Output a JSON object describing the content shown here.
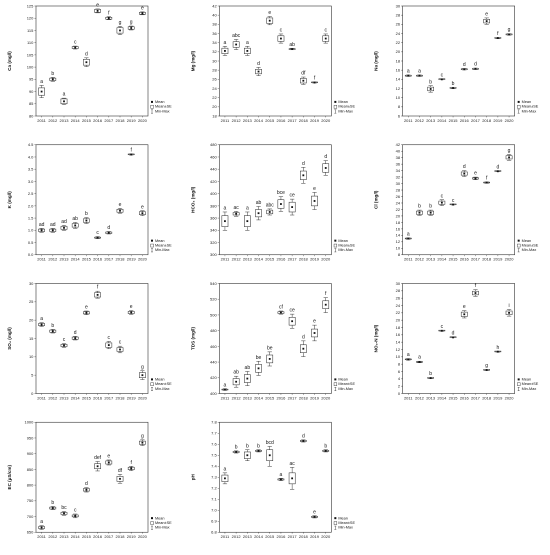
{
  "chart_data": [
    {
      "type": "box",
      "ylabel": "Ca (mg/l)",
      "x": [
        "2011",
        "2012",
        "2013",
        "2014",
        "2015",
        "2016",
        "2017",
        "2018",
        "2019",
        "2020"
      ],
      "ylim": [
        80,
        125
      ],
      "yticks": [
        "80",
        "85",
        "90",
        "95",
        "100",
        "105",
        "110",
        "115",
        "120",
        "125"
      ],
      "mean": [
        90,
        95,
        86,
        108,
        102,
        123,
        120,
        115,
        116,
        122
      ],
      "se_low": [
        88.5,
        94.5,
        85,
        107.6,
        100.8,
        122.4,
        119.6,
        113.9,
        115.5,
        121.6
      ],
      "se_high": [
        91.5,
        95.5,
        87,
        108.4,
        103.2,
        123.6,
        120.4,
        116.1,
        116.5,
        122.4
      ],
      "min": [
        87.5,
        94.2,
        84.7,
        107.4,
        100.2,
        122.2,
        119.4,
        113.3,
        115.2,
        121.4
      ],
      "max": [
        92.5,
        95.8,
        87.3,
        108.6,
        103.8,
        123.8,
        120.6,
        116.7,
        116.8,
        122.6
      ],
      "groups": [
        "a",
        "b",
        "a",
        "c",
        "d",
        "e",
        "f",
        "g",
        "g",
        "e"
      ]
    },
    {
      "type": "box",
      "ylabel": "Mg (mg/l)",
      "x": [
        "2011",
        "2012",
        "2013",
        "2014",
        "2015",
        "2016",
        "2017",
        "2018",
        "2019",
        "2020"
      ],
      "ylim": [
        18,
        42
      ],
      "yticks": [
        "18",
        "20",
        "22",
        "24",
        "26",
        "28",
        "30",
        "32",
        "34",
        "36",
        "38",
        "40",
        "42"
      ],
      "mean": [
        32.2,
        33.6,
        32.2,
        27.7,
        38.8,
        34.9,
        32.6,
        25.7,
        25.3,
        34.9
      ],
      "se_low": [
        31.6,
        33.0,
        31.6,
        27.2,
        38.2,
        34.3,
        32.5,
        25.2,
        25.25,
        34.3
      ],
      "se_high": [
        32.8,
        34.2,
        32.8,
        28.2,
        39.4,
        35.5,
        32.7,
        26.2,
        25.35,
        35.5
      ],
      "min": [
        31.2,
        32.5,
        31.2,
        26.8,
        37.9,
        33.9,
        32.45,
        24.9,
        25.2,
        33.9
      ],
      "max": [
        33.2,
        34.7,
        33.2,
        28.6,
        39.7,
        35.9,
        32.75,
        26.5,
        25.4,
        35.9
      ],
      "groups": [
        "a",
        "abc",
        "a",
        "d",
        "e",
        "c",
        "ab",
        "df",
        "f",
        "c"
      ]
    },
    {
      "type": "box",
      "ylabel": "Na (mg/l)",
      "x": [
        "2011",
        "2012",
        "2013",
        "2014",
        "2015",
        "2016",
        "2017",
        "2018",
        "2019",
        "2020"
      ],
      "ylim": [
        6,
        30
      ],
      "yticks": [
        "6",
        "8",
        "10",
        "12",
        "14",
        "16",
        "18",
        "20",
        "22",
        "24",
        "26",
        "28",
        "30"
      ],
      "mean": [
        14.8,
        14.8,
        11.9,
        14.0,
        12.1,
        16.2,
        16.3,
        26.7,
        23.0,
        23.8
      ],
      "se_low": [
        14.7,
        14.7,
        11.5,
        13.95,
        12.05,
        16.1,
        16.2,
        26.3,
        22.95,
        23.7
      ],
      "se_high": [
        14.9,
        14.9,
        12.3,
        14.05,
        12.15,
        16.3,
        16.4,
        27.1,
        23.05,
        23.9
      ],
      "min": [
        14.65,
        14.65,
        11.2,
        13.9,
        12.0,
        16.05,
        16.15,
        26.0,
        22.9,
        23.65
      ],
      "max": [
        14.95,
        14.95,
        12.6,
        14.1,
        12.2,
        16.35,
        16.45,
        27.4,
        23.1,
        23.95
      ],
      "groups": [
        "a",
        "a",
        "b",
        "c",
        "b",
        "d",
        "d",
        "e",
        "f",
        "g"
      ]
    },
    {
      "type": "box",
      "ylabel": "K (mg/l)",
      "x": [
        "2011",
        "2012",
        "2013",
        "2014",
        "2015",
        "2016",
        "2017",
        "2018",
        "2019",
        "2020"
      ],
      "ylim": [
        0.0,
        4.5
      ],
      "yticks": [
        "0.0",
        "0.5",
        "1.0",
        "1.5",
        "2.0",
        "2.5",
        "3.0",
        "3.5",
        "4.0",
        "4.5"
      ],
      "mean": [
        1.0,
        1.0,
        1.1,
        1.2,
        1.4,
        0.7,
        0.9,
        1.8,
        4.1,
        1.7
      ],
      "se_low": [
        0.95,
        0.95,
        1.04,
        1.13,
        1.33,
        0.68,
        0.87,
        1.74,
        4.09,
        1.64
      ],
      "se_high": [
        1.05,
        1.05,
        1.16,
        1.27,
        1.47,
        0.72,
        0.93,
        1.86,
        4.11,
        1.76
      ],
      "min": [
        0.92,
        0.92,
        1.0,
        1.08,
        1.28,
        0.66,
        0.85,
        1.7,
        4.08,
        1.6
      ],
      "max": [
        1.08,
        1.08,
        1.2,
        1.32,
        1.52,
        0.74,
        0.95,
        1.9,
        4.12,
        1.8
      ],
      "groups": [
        "ad",
        "ad",
        "ad",
        "ab",
        "b",
        "c",
        "d",
        "e",
        "f",
        "e"
      ]
    },
    {
      "type": "box",
      "ylabel": "HCO₃ (mg/l)",
      "x": [
        "2011",
        "2012",
        "2013",
        "2014",
        "2015",
        "2016",
        "2017",
        "2018",
        "2019",
        "2020"
      ],
      "ylim": [
        300,
        480
      ],
      "yticks": [
        "300",
        "320",
        "340",
        "360",
        "380",
        "400",
        "420",
        "440",
        "460",
        "480"
      ],
      "mean": [
        355,
        367,
        355,
        368,
        370,
        383,
        378,
        430,
        388,
        442
      ],
      "se_low": [
        346,
        365,
        346,
        362,
        367,
        376,
        370,
        423,
        380,
        435
      ],
      "se_high": [
        364,
        369,
        364,
        374,
        373,
        390,
        386,
        437,
        396,
        449
      ],
      "min": [
        340,
        363,
        340,
        357,
        365,
        371,
        365,
        417,
        374,
        430
      ],
      "max": [
        370,
        371,
        370,
        379,
        375,
        395,
        391,
        443,
        402,
        454
      ],
      "groups": [
        "a",
        "ac",
        "a",
        "ab",
        "abc",
        "bce",
        "ce",
        "d",
        "e",
        "d"
      ]
    },
    {
      "type": "box",
      "ylabel": "Cl (mg/l)",
      "x": [
        "2011",
        "2012",
        "2013",
        "2014",
        "2015",
        "2016",
        "2017",
        "2018",
        "2019",
        "2020"
      ],
      "ylim": [
        8,
        42
      ],
      "yticks": [
        "8",
        "10",
        "12",
        "14",
        "16",
        "18",
        "20",
        "22",
        "24",
        "26",
        "28",
        "30",
        "32",
        "34",
        "36",
        "38",
        "40",
        "42"
      ],
      "mean": [
        13.0,
        21.0,
        21.0,
        24.1,
        23.5,
        33.1,
        31.6,
        30.3,
        33.8,
        38.1
      ],
      "se_low": [
        12.9,
        20.5,
        20.5,
        23.6,
        23.45,
        32.6,
        31.4,
        30.2,
        33.75,
        37.6
      ],
      "se_high": [
        13.1,
        21.5,
        21.5,
        24.6,
        23.55,
        33.6,
        31.8,
        30.4,
        33.85,
        38.6
      ],
      "min": [
        12.8,
        20.2,
        20.2,
        23.2,
        23.4,
        32.2,
        31.2,
        30.1,
        33.7,
        37.2
      ],
      "max": [
        13.2,
        21.8,
        21.8,
        25.0,
        23.6,
        34.0,
        32.0,
        30.5,
        33.9,
        39.0
      ],
      "groups": [
        "a",
        "b",
        "b",
        "c",
        "c",
        "d",
        "e",
        "f",
        "d",
        "g"
      ]
    },
    {
      "type": "box",
      "ylabel": "SO₄ (mg/l)",
      "x": [
        "2011",
        "2012",
        "2013",
        "2014",
        "2015",
        "2016",
        "2017",
        "2018",
        "2019",
        "2020"
      ],
      "ylim": [
        0,
        30
      ],
      "yticks": [
        "0",
        "5",
        "10",
        "15",
        "20",
        "25",
        "30"
      ],
      "mean": [
        18.8,
        17.0,
        13.1,
        15.1,
        22.0,
        26.9,
        13.2,
        12.0,
        22.1,
        5.0
      ],
      "se_low": [
        18.5,
        16.7,
        12.8,
        14.8,
        21.7,
        26.3,
        12.6,
        11.5,
        21.8,
        4.3
      ],
      "se_high": [
        19.1,
        17.3,
        13.4,
        15.4,
        22.3,
        27.5,
        13.8,
        12.5,
        22.4,
        5.7
      ],
      "min": [
        18.3,
        16.5,
        12.6,
        14.6,
        21.5,
        26.0,
        12.2,
        11.1,
        21.6,
        3.8
      ],
      "max": [
        19.3,
        17.5,
        13.6,
        15.6,
        22.5,
        27.9,
        14.2,
        12.9,
        22.6,
        6.2
      ],
      "groups": [
        "a",
        "b",
        "c",
        "d",
        "e",
        "f",
        "c",
        "c",
        "e",
        "g"
      ]
    },
    {
      "type": "box",
      "ylabel": "TDS (mg/l)",
      "x": [
        "2011",
        "2012",
        "2013",
        "2014",
        "2015",
        "2016",
        "2017",
        "2018",
        "2019",
        "2020"
      ],
      "ylim": [
        400,
        540
      ],
      "yticks": [
        "400",
        "420",
        "440",
        "460",
        "480",
        "500",
        "520",
        "540"
      ],
      "mean": [
        405,
        415,
        419,
        432,
        444,
        503,
        492,
        457,
        477,
        513
      ],
      "se_low": [
        404.5,
        411,
        414,
        427,
        439,
        502,
        487,
        452,
        472,
        508
      ],
      "se_high": [
        405.5,
        419,
        424,
        437,
        449,
        504,
        497,
        462,
        482,
        518
      ],
      "min": [
        404,
        408,
        410,
        423,
        435,
        501,
        483,
        447,
        467,
        503
      ],
      "max": [
        406,
        422,
        428,
        441,
        453,
        505,
        501,
        467,
        487,
        522
      ],
      "groups": [
        "a",
        "ab",
        "ab",
        "be",
        "be",
        "cf",
        "ce",
        "d",
        "e",
        "f"
      ]
    },
    {
      "type": "box",
      "ylabel": "NO₃-N (mg/l)",
      "x": [
        "2011",
        "2012",
        "2013",
        "2014",
        "2015",
        "2016",
        "2017",
        "2018",
        "2019",
        "2020"
      ],
      "ylim": [
        0,
        30
      ],
      "yticks": [
        "0",
        "2",
        "4",
        "6",
        "8",
        "10",
        "12",
        "14",
        "16",
        "18",
        "20",
        "22",
        "24",
        "26",
        "28",
        "30"
      ],
      "mean": [
        9.3,
        8.6,
        4.2,
        17.1,
        15.3,
        21.6,
        27.4,
        6.4,
        11.4,
        22.0
      ],
      "se_low": [
        9.2,
        8.5,
        4.15,
        17.05,
        15.25,
        21.0,
        26.9,
        6.35,
        11.35,
        21.5
      ],
      "se_high": [
        9.4,
        8.7,
        4.25,
        17.15,
        15.35,
        22.2,
        27.9,
        6.45,
        11.45,
        22.5
      ],
      "min": [
        9.1,
        8.4,
        4.1,
        17.0,
        15.2,
        20.6,
        26.5,
        6.3,
        11.3,
        21.1
      ],
      "max": [
        9.5,
        8.8,
        4.3,
        17.2,
        15.4,
        22.6,
        28.3,
        6.5,
        11.5,
        22.9
      ],
      "groups": [
        "a",
        "a",
        "b",
        "c",
        "d",
        "e",
        "f",
        "g",
        "h",
        "i"
      ]
    },
    {
      "type": "box",
      "ylabel": "EC (μS/cm)",
      "x": [
        "2011",
        "2012",
        "2013",
        "2014",
        "2015",
        "2016",
        "2017",
        "2018",
        "2019",
        "2020"
      ],
      "ylim": [
        650,
        1000
      ],
      "yticks": [
        "650",
        "700",
        "750",
        "800",
        "850",
        "900",
        "950",
        "1000"
      ],
      "mean": [
        665,
        727,
        710,
        702,
        785,
        860,
        872,
        820,
        853,
        935
      ],
      "se_low": [
        662,
        724,
        707,
        699,
        781,
        852,
        867,
        812,
        849,
        930
      ],
      "se_high": [
        668,
        730,
        713,
        705,
        789,
        868,
        877,
        828,
        857,
        940
      ],
      "min": [
        659,
        722,
        704,
        696,
        778,
        845,
        864,
        806,
        846,
        926
      ],
      "max": [
        671,
        732,
        716,
        708,
        792,
        875,
        880,
        834,
        860,
        944
      ],
      "groups": [
        "a",
        "b",
        "bc",
        "c",
        "d",
        "def",
        "e",
        "df",
        "f",
        "g"
      ]
    },
    {
      "type": "box",
      "ylabel": "pH",
      "x": [
        "2011",
        "2012",
        "2013",
        "2014",
        "2015",
        "2016",
        "2017",
        "2018",
        "2019",
        "2020"
      ],
      "ylim": [
        6.8,
        7.8
      ],
      "yticks": [
        "6.8",
        "6.9",
        "7.0",
        "7.1",
        "7.2",
        "7.3",
        "7.4",
        "7.5",
        "7.6",
        "7.7",
        "7.8"
      ],
      "mean": [
        7.29,
        7.53,
        7.5,
        7.54,
        7.5,
        7.28,
        7.29,
        7.63,
        6.94,
        7.54
      ],
      "se_low": [
        7.26,
        7.525,
        7.47,
        7.535,
        7.45,
        7.275,
        7.24,
        7.625,
        6.935,
        7.535
      ],
      "se_high": [
        7.32,
        7.535,
        7.53,
        7.545,
        7.55,
        7.285,
        7.34,
        7.635,
        6.945,
        7.545
      ],
      "min": [
        7.24,
        7.52,
        7.45,
        7.53,
        7.4,
        7.27,
        7.19,
        7.62,
        6.93,
        7.53
      ],
      "max": [
        7.34,
        7.54,
        7.55,
        7.55,
        7.58,
        7.29,
        7.39,
        7.64,
        6.95,
        7.55
      ],
      "groups": [
        "a",
        "b",
        "b",
        "b",
        "bcd",
        "a",
        "ac",
        "d",
        "e",
        "b"
      ]
    }
  ],
  "legend": {
    "mean": "Mean",
    "se": "Mean±SE",
    "range": "Min-Max"
  }
}
